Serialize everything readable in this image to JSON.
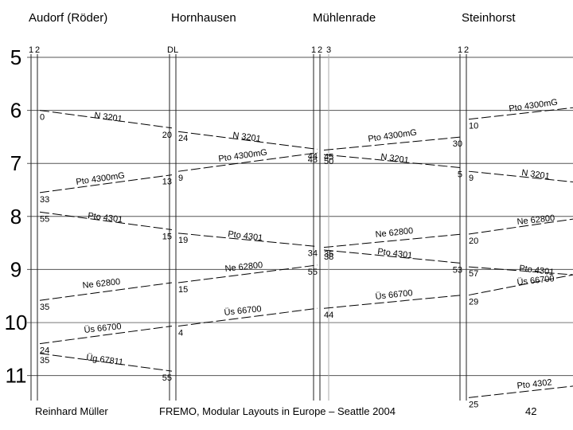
{
  "footer": {
    "author": "Reinhard Müller",
    "title": "FREMO, Modular Layouts in Europe – Seattle 2004",
    "page": "42"
  },
  "chart_data": {
    "type": "line",
    "title": "",
    "chart_kind": "train timetable graph (Bildfahrplan)",
    "stations": [
      {
        "name": "Audorf (Röder)",
        "km": 0,
        "tracks": [
          "1",
          "2"
        ]
      },
      {
        "name": "Hornhausen",
        "km": 6.0,
        "tracks": [
          "D",
          "L"
        ]
      },
      {
        "name": "Mühlenrade",
        "km": 12.5,
        "tracks": [
          "1",
          "2",
          "3"
        ]
      },
      {
        "name": "Steinhorst",
        "km": 19.0,
        "tracks": [
          "1",
          "2"
        ]
      }
    ],
    "time_axis": {
      "orientation": "vertical, increasing downward",
      "unit": "hour",
      "ylim": [
        5,
        11.5
      ],
      "ticks": [
        5,
        6,
        7,
        8,
        9,
        10,
        11
      ]
    },
    "grid": true,
    "series": [
      {
        "name": "N 3201",
        "points": [
          {
            "station": 0,
            "time": 6.0,
            "label": "0"
          },
          {
            "station": 1,
            "time": 6.333,
            "label": "20"
          },
          {
            "station": 1,
            "time": 6.4,
            "label": "24"
          },
          {
            "station": 2,
            "time": 6.733,
            "label": "44"
          },
          {
            "station": 2,
            "time": 6.833,
            "label": "50"
          },
          {
            "station": 3,
            "time": 7.083,
            "label": "5"
          },
          {
            "station": 3,
            "time": 7.15,
            "label": "9"
          },
          {
            "station": 4,
            "time": 7.35,
            "label": ""
          }
        ]
      },
      {
        "name": "Pto 4300mG",
        "points": [
          {
            "station": 0,
            "time": 7.55,
            "label": "33"
          },
          {
            "station": 1,
            "time": 7.217,
            "label": "13"
          },
          {
            "station": 1,
            "time": 7.15,
            "label": "9"
          },
          {
            "station": 2,
            "time": 6.8,
            "label": "48"
          },
          {
            "station": 2,
            "time": 6.75,
            "label": "45"
          },
          {
            "station": 3,
            "time": 6.5,
            "label": "30"
          },
          {
            "station": 3,
            "time": 6.167,
            "label": "10"
          },
          {
            "station": 4,
            "time": 5.95,
            "label": ""
          }
        ]
      },
      {
        "name": "Pto 4301",
        "points": [
          {
            "station": 0,
            "time": 7.917,
            "label": "55"
          },
          {
            "station": 1,
            "time": 8.25,
            "label": "15"
          },
          {
            "station": 1,
            "time": 8.317,
            "label": "19"
          },
          {
            "station": 2,
            "time": 8.567,
            "label": "34"
          },
          {
            "station": 2,
            "time": 8.633,
            "label": "38"
          },
          {
            "station": 3,
            "time": 8.883,
            "label": "53"
          },
          {
            "station": 3,
            "time": 8.95,
            "label": "57"
          },
          {
            "station": 4,
            "time": 9.1,
            "label": ""
          }
        ]
      },
      {
        "name": "Ne 62800",
        "points": [
          {
            "station": 0,
            "time": 9.583,
            "label": "35"
          },
          {
            "station": 1,
            "time": 9.25,
            "label": "15"
          },
          {
            "station": 2,
            "time": 8.917,
            "label": "55"
          },
          {
            "station": 2,
            "time": 8.583,
            "label": "35"
          },
          {
            "station": 3,
            "time": 8.333,
            "label": "20"
          },
          {
            "station": 4,
            "time": 8.05,
            "label": ""
          }
        ]
      },
      {
        "name": "Üs 66700",
        "points": [
          {
            "station": 0,
            "time": 10.4,
            "label": "24"
          },
          {
            "station": 1,
            "time": 10.067,
            "label": "4"
          },
          {
            "station": 2,
            "time": 9.733,
            "label": "44"
          },
          {
            "station": 3,
            "time": 9.483,
            "label": "29"
          },
          {
            "station": 4,
            "time": 9.1,
            "label": ""
          }
        ]
      },
      {
        "name": "Üg 67811",
        "points": [
          {
            "station": 0,
            "time": 10.583,
            "label": "35"
          },
          {
            "station": 1,
            "time": 10.917,
            "label": "55"
          }
        ]
      },
      {
        "name": "Pto 4302",
        "points": [
          {
            "station": 3,
            "time": 11.417,
            "label": "25"
          },
          {
            "station": 4,
            "time": 11.2,
            "label": ""
          }
        ]
      }
    ]
  }
}
